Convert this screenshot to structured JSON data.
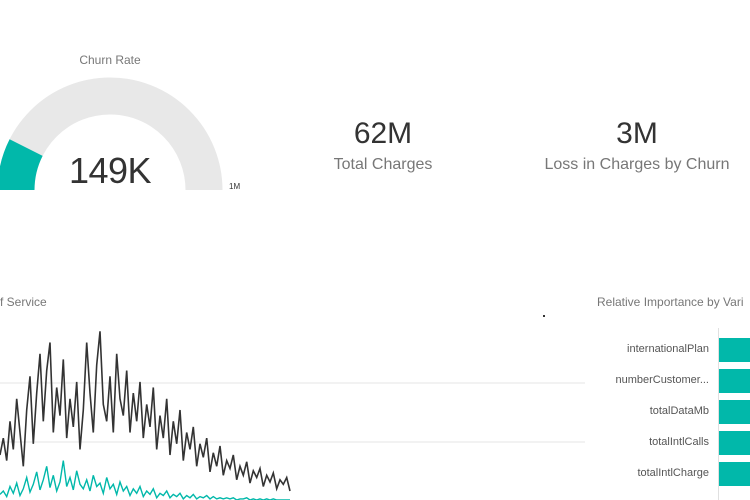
{
  "gauge": {
    "title": "Churn Rate",
    "value_label": "149K",
    "max_label": "1M",
    "value": 149000,
    "max": 1000000,
    "fill_color": "#01b8aa",
    "track_color": "#e8e8e8"
  },
  "cards": {
    "total_charges": {
      "value": "62M",
      "label": "Total Charges"
    },
    "loss_in_charges": {
      "value": "3M",
      "label": "Loss in Charges by Churn"
    }
  },
  "line_chart": {
    "title": "f Service"
  },
  "bar_chart": {
    "title": "Relative Importance by Vari",
    "bar_color": "#01b8aa",
    "rows": [
      {
        "label": "internationalPlan"
      },
      {
        "label": "numberCustomer..."
      },
      {
        "label": "totalDataMb"
      },
      {
        "label": "totalIntlCalls"
      },
      {
        "label": "totalIntlCharge"
      }
    ]
  },
  "chart_data": [
    {
      "type": "line",
      "title": "",
      "xlabel": "",
      "ylabel": "",
      "grid": true,
      "series": [
        {
          "color": "#333333",
          "values": [
            40,
            55,
            35,
            70,
            45,
            90,
            60,
            30,
            80,
            110,
            50,
            95,
            130,
            70,
            115,
            140,
            60,
            100,
            75,
            125,
            55,
            90,
            65,
            105,
            45,
            80,
            140,
            95,
            60,
            120,
            150,
            85,
            70,
            110,
            60,
            130,
            90,
            75,
            115,
            60,
            95,
            70,
            105,
            55,
            85,
            65,
            100,
            45,
            75,
            55,
            90,
            40,
            70,
            50,
            80,
            35,
            60,
            45,
            65,
            30,
            50,
            38,
            55,
            25,
            42,
            30,
            48,
            22,
            35,
            28,
            40,
            18,
            30,
            22,
            34,
            15,
            26,
            20,
            28,
            12,
            22,
            16,
            24,
            10,
            18,
            14,
            20,
            8
          ]
        },
        {
          "color": "#01b8aa",
          "values": [
            5,
            8,
            3,
            12,
            6,
            15,
            4,
            10,
            20,
            7,
            14,
            25,
            9,
            18,
            30,
            11,
            22,
            8,
            16,
            35,
            12,
            20,
            9,
            26,
            14,
            10,
            18,
            8,
            22,
            12,
            15,
            6,
            20,
            10,
            14,
            5,
            16,
            8,
            12,
            4,
            10,
            6,
            12,
            3,
            8,
            5,
            10,
            2,
            6,
            4,
            8,
            2,
            5,
            3,
            6,
            1,
            4,
            2,
            5,
            1,
            3,
            2,
            4,
            1,
            3,
            1,
            2,
            1,
            2,
            1,
            2,
            0,
            1,
            1,
            2,
            0,
            1,
            0,
            1,
            0,
            1,
            0,
            1,
            0,
            0,
            0,
            0,
            0
          ]
        }
      ],
      "ylim": [
        0,
        160
      ]
    },
    {
      "type": "bar",
      "title": "Relative Importance by Vari",
      "categories": [
        "internationalPlan",
        "numberCustomer...",
        "totalDataMb",
        "totalIntlCalls",
        "totalIntlCharge"
      ],
      "values": [
        1,
        1,
        1,
        1,
        1
      ]
    }
  ]
}
